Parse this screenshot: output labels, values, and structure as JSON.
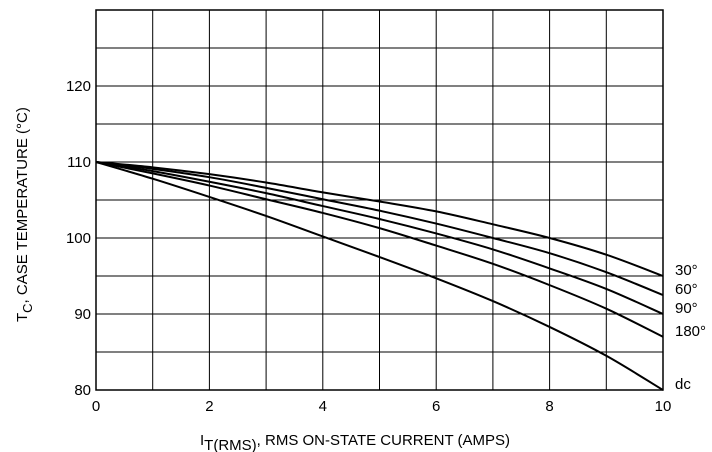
{
  "chart_data": {
    "type": "line",
    "xlabel_main": "I",
    "xlabel_sub": "T(RMS)",
    "xlabel_rest": ", RMS ON-STATE CURRENT (AMPS)",
    "ylabel_main": "T",
    "ylabel_sub": "C",
    "ylabel_rest": ", CASE TEMPERATURE (°C)",
    "xlim": [
      0,
      10
    ],
    "ylim": [
      80,
      130
    ],
    "grid": true,
    "x_ticks": [
      "0",
      "2",
      "4",
      "6",
      "8",
      "10"
    ],
    "y_ticks": [
      "80",
      "90",
      "100",
      "110",
      "120"
    ],
    "series": [
      {
        "name": "30°",
        "x": [
          0,
          1,
          2,
          3,
          4,
          5,
          6,
          7,
          8,
          9,
          10
        ],
        "y": [
          110,
          109.3,
          108.4,
          107.3,
          106.0,
          104.8,
          103.5,
          101.8,
          100.0,
          97.8,
          95.0
        ]
      },
      {
        "name": "60°",
        "x": [
          0,
          1,
          2,
          3,
          4,
          5,
          6,
          7,
          8,
          9,
          10
        ],
        "y": [
          110,
          109.1,
          108.0,
          106.6,
          105.1,
          103.6,
          101.9,
          100.0,
          98.0,
          95.5,
          92.5
        ]
      },
      {
        "name": "90°",
        "x": [
          0,
          1,
          2,
          3,
          4,
          5,
          6,
          7,
          8,
          9,
          10
        ],
        "y": [
          110,
          108.8,
          107.4,
          105.9,
          104.2,
          102.5,
          100.6,
          98.5,
          96.0,
          93.3,
          90.0
        ]
      },
      {
        "name": "180°",
        "x": [
          0,
          1,
          2,
          3,
          4,
          5,
          6,
          7,
          8,
          9,
          10
        ],
        "y": [
          110,
          108.5,
          106.9,
          105.1,
          103.3,
          101.3,
          99.0,
          96.6,
          93.8,
          90.7,
          87.0
        ]
      },
      {
        "name": "dc",
        "x": [
          0,
          1,
          2,
          3,
          4,
          5,
          6,
          7,
          8,
          9,
          10
        ],
        "y": [
          110,
          107.8,
          105.4,
          102.9,
          100.2,
          97.5,
          94.7,
          91.7,
          88.3,
          84.5,
          80.0
        ]
      }
    ]
  }
}
